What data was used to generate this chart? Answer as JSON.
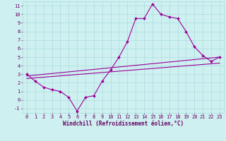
{
  "xlabel": "Windchill (Refroidissement éolien,°C)",
  "background_color": "#cff0f0",
  "line_color": "#990099",
  "xlim": [
    -0.5,
    23.5
  ],
  "ylim": [
    -1.5,
    11.5
  ],
  "xticks": [
    0,
    1,
    2,
    3,
    4,
    5,
    6,
    7,
    8,
    9,
    10,
    11,
    12,
    13,
    14,
    15,
    16,
    17,
    18,
    19,
    20,
    21,
    22,
    23
  ],
  "yticks": [
    -1,
    0,
    1,
    2,
    3,
    4,
    5,
    6,
    7,
    8,
    9,
    10,
    11
  ],
  "line1_x": [
    0,
    1,
    2,
    3,
    4,
    5,
    6,
    7,
    8,
    9,
    10,
    11,
    12,
    13,
    14,
    15,
    16,
    17,
    18,
    19,
    20,
    21,
    22,
    23
  ],
  "line1_y": [
    3.0,
    2.2,
    1.5,
    1.2,
    1.0,
    0.3,
    -1.3,
    0.3,
    0.5,
    2.2,
    3.5,
    5.0,
    6.8,
    9.5,
    9.5,
    11.2,
    10.0,
    9.7,
    9.5,
    8.0,
    6.2,
    5.2,
    4.5,
    5.0
  ],
  "line2_x": [
    0,
    23
  ],
  "line2_y": [
    2.5,
    4.3
  ],
  "line3_x": [
    0,
    23
  ],
  "line3_y": [
    2.8,
    5.0
  ],
  "grid_color": "#aadcdc",
  "font_color": "#660066",
  "tick_fontsize": 5.0,
  "label_fontsize": 5.5
}
